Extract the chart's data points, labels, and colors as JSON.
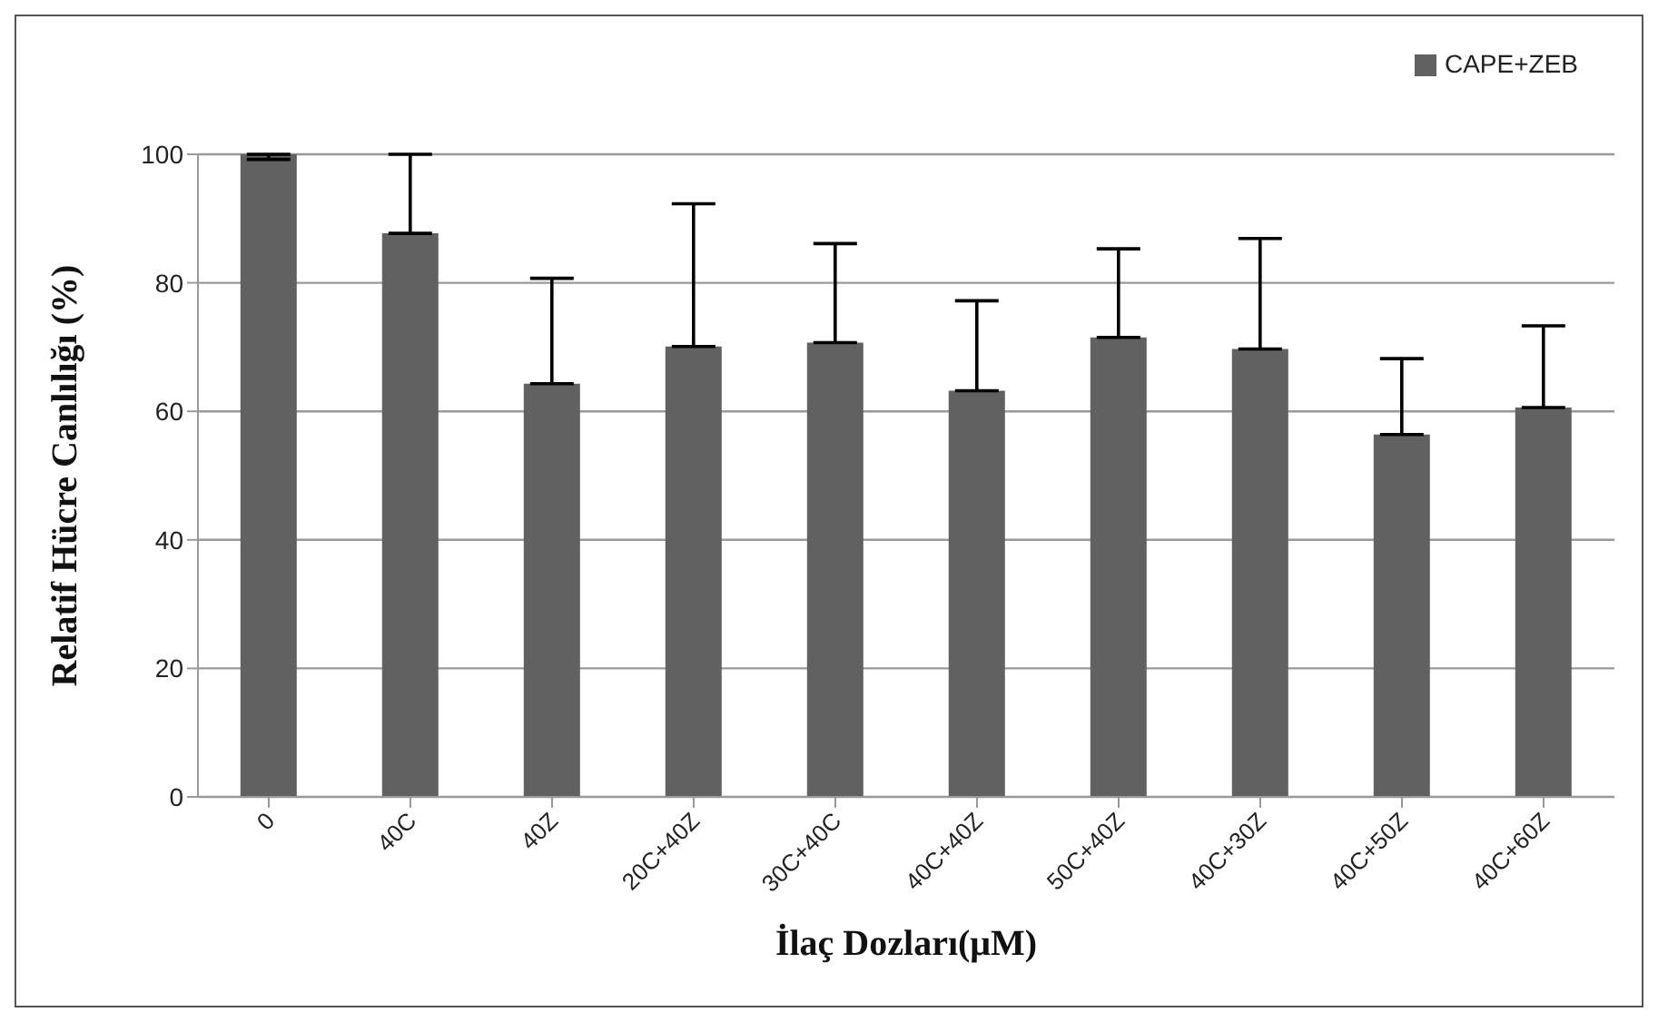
{
  "chart_data": {
    "type": "bar",
    "xlabel": "İlaç Dozları(μM)",
    "ylabel": "Relatif Hücre Canlılığı (%)",
    "categories": [
      "0",
      "40C",
      "40Z",
      "20C+40Z",
      "30C+40C",
      "40C+40Z",
      "50C+40Z",
      "40C+30Z",
      "40C+50Z",
      "40C+60Z"
    ],
    "series": [
      {
        "name": "CAPE+ZEB",
        "color": "#616161",
        "values": [
          100,
          87.7,
          64.3,
          70.1,
          70.7,
          63.2,
          71.5,
          69.7,
          56.4,
          60.6
        ],
        "errors": [
          [
            99.2,
            100
          ],
          [
            87.7,
            100
          ],
          [
            64.3,
            80.7
          ],
          [
            70.1,
            92.3
          ],
          [
            70.7,
            86.1
          ],
          [
            63.2,
            77.2
          ],
          [
            71.5,
            85.3
          ],
          [
            69.7,
            86.9
          ],
          [
            56.4,
            68.2
          ],
          [
            60.6,
            73.3
          ]
        ]
      }
    ],
    "ylim": [
      0,
      100
    ],
    "yticks": [
      0,
      20,
      40,
      60,
      80,
      100
    ],
    "grid": "y",
    "legend": "top right"
  }
}
